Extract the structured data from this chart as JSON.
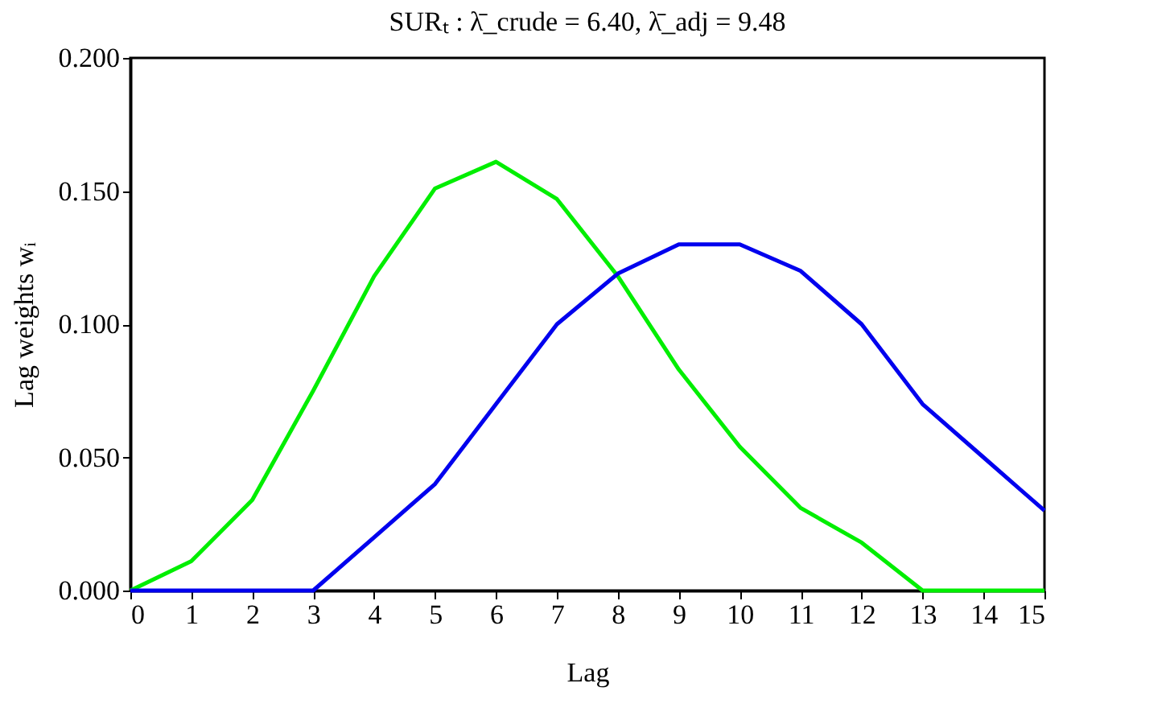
{
  "chart_data": {
    "type": "line",
    "title": "SURₜ : λ̄_crude = 6.40, λ̄_adj = 9.48",
    "xlabel": "Lag",
    "ylabel": "Lag weights wᵢ",
    "x": [
      0,
      1,
      2,
      3,
      4,
      5,
      6,
      7,
      8,
      9,
      10,
      11,
      12,
      13,
      14,
      15
    ],
    "series": [
      {
        "color": "#00ee00",
        "values": [
          0,
          0.011,
          0.034,
          0.075,
          0.118,
          0.151,
          0.161,
          0.147,
          0.118,
          0.083,
          0.054,
          0.031,
          0.018,
          0,
          0,
          0
        ]
      },
      {
        "color": "#0000ee",
        "values": [
          0,
          0,
          0,
          0,
          0.02,
          0.04,
          0.07,
          0.1,
          0.119,
          0.13,
          0.13,
          0.12,
          0.1,
          0.07,
          0.05,
          0.03
        ]
      }
    ],
    "xlim": [
      0,
      15
    ],
    "xticks": [
      0,
      1,
      2,
      3,
      4,
      5,
      6,
      7,
      8,
      9,
      10,
      11,
      12,
      13,
      14,
      15
    ],
    "ylim": [
      0,
      0.2
    ],
    "yticks": [
      {
        "value": 0,
        "label": "0.000"
      },
      {
        "value": 0.05,
        "label": "0.050"
      },
      {
        "value": 0.1,
        "label": "0.100"
      },
      {
        "value": 0.15,
        "label": "0.150"
      },
      {
        "value": 0.2,
        "label": "0.200"
      }
    ],
    "grid": false,
    "legend": false,
    "marker": "none",
    "line_style": "solid"
  }
}
